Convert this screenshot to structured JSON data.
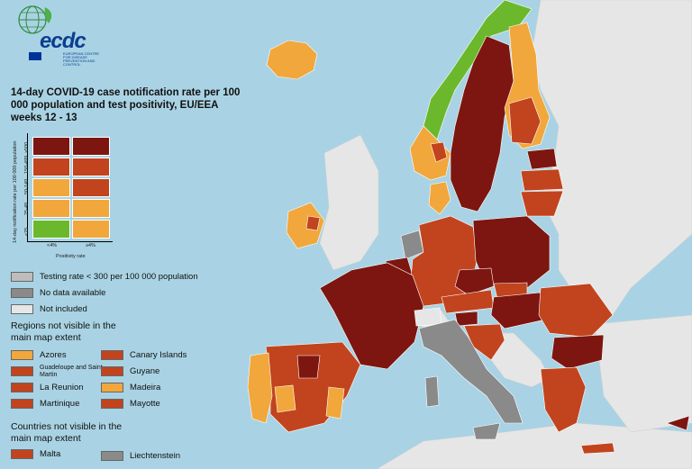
{
  "colors": {
    "sea": "#a9d3e4",
    "land_excluded": "#e6e6e6",
    "green": "#6bb82d",
    "orange": "#f1a73b",
    "red_orange": "#c1441e",
    "dark_red": "#7d1610",
    "gray_testing": "#bdbdbd",
    "gray_nodata": "#8a8a8a",
    "not_included": "#e6e6e6"
  },
  "logo": {
    "text": "ecdc",
    "subtitle": "EUROPEAN CENTRE FOR DISEASE PREVENTION AND CONTROL",
    "icon": "globe-leaf-icon",
    "flag_icon": "eu-flag-icon"
  },
  "title": "14-day COVID-19 case notification rate per 100 000 population and test positivity, EU/EEA weeks 12 - 13",
  "matrix": {
    "y_axis_label": "14-day notification rate per 100 000 population",
    "x_axis_label": "Positivity rate",
    "rows": [
      "≥500",
      "150-499",
      "50-149",
      "25-49",
      "<25"
    ],
    "cols": [
      "<4%",
      "≥4%"
    ],
    "cells": [
      [
        "dark_red",
        "dark_red"
      ],
      [
        "red_orange",
        "red_orange"
      ],
      [
        "orange",
        "red_orange"
      ],
      [
        "orange",
        "orange"
      ],
      [
        "green",
        "orange"
      ]
    ]
  },
  "legend": {
    "testing_rate": "Testing rate < 300 per 100 000 population",
    "no_data": "No data available",
    "not_included": "Not included"
  },
  "regions_heading": "Regions not visible in the main map extent",
  "regions": [
    {
      "name": "Azores",
      "color": "orange"
    },
    {
      "name": "Canary Islands",
      "color": "red_orange"
    },
    {
      "name": "Guadeloupe and Saint Martin",
      "color": "red_orange"
    },
    {
      "name": "Guyane",
      "color": "red_orange"
    },
    {
      "name": "La Reunion",
      "color": "red_orange"
    },
    {
      "name": "Madeira",
      "color": "orange"
    },
    {
      "name": "Martinique",
      "color": "red_orange"
    },
    {
      "name": "Mayotte",
      "color": "red_orange"
    }
  ],
  "countries_heading": "Countries not visible in the main map extent",
  "countries": [
    {
      "name": "Malta",
      "color": "red_orange"
    },
    {
      "name": "Liechtenstein",
      "color": "gray_nodata"
    }
  ]
}
